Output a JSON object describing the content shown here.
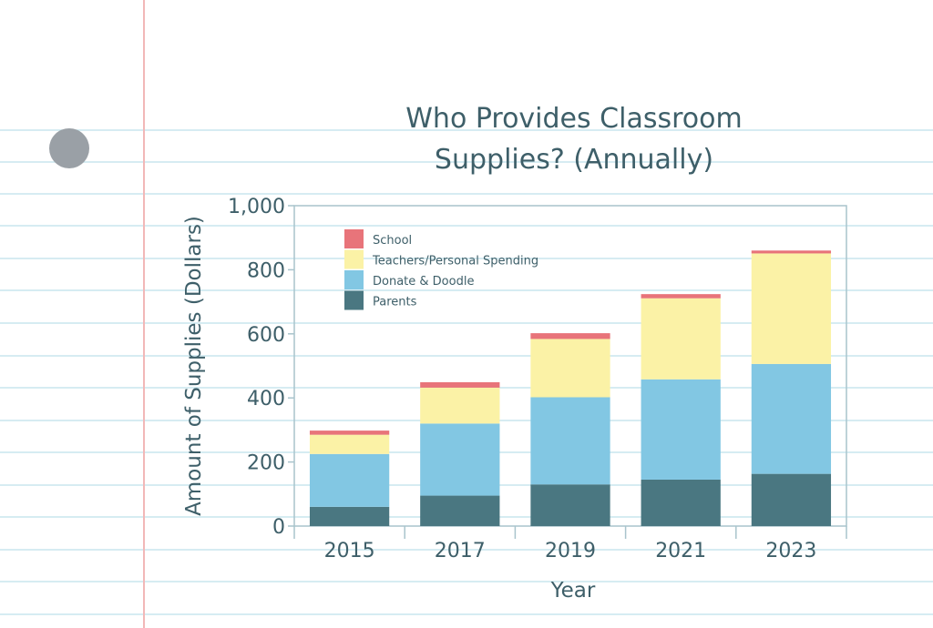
{
  "colors": {
    "school": "#e8747a",
    "teachers": "#fbf2a6",
    "donate": "#82c7e3",
    "parents": "#4a7781",
    "text": "#3e5f69",
    "axis": "#a9c4cc",
    "paper_line": "#c8e6ee",
    "margin_line": "#f2b8b8",
    "hole": "#9aa0a6"
  },
  "chart_data": {
    "type": "bar",
    "stacked": true,
    "title_lines": [
      "Who Provides Classroom",
      "Supplies? (Annually)"
    ],
    "xlabel": "Year",
    "ylabel": "Amount of Supplies (Dollars)",
    "categories": [
      "2015",
      "2017",
      "2019",
      "2021",
      "2023"
    ],
    "ylim": [
      0,
      1000
    ],
    "yticks": [
      {
        "value": 0,
        "label": "0"
      },
      {
        "value": 200,
        "label": "200"
      },
      {
        "value": 400,
        "label": "400"
      },
      {
        "value": 600,
        "label": "600"
      },
      {
        "value": 800,
        "label": "800"
      },
      {
        "value": 1000,
        "label": "1,000"
      }
    ],
    "grid": false,
    "legend_position": "top-left",
    "series": [
      {
        "key": "parents",
        "name": "Parents",
        "values": [
          60,
          95,
          130,
          145,
          163
        ]
      },
      {
        "key": "donate",
        "name": "Donate & Doodle",
        "values": [
          165,
          225,
          272,
          313,
          343
        ]
      },
      {
        "key": "teachers",
        "name": "Teachers/Personal Spending",
        "values": [
          60,
          112,
          182,
          253,
          345
        ]
      },
      {
        "key": "school",
        "name": "School",
        "values": [
          13,
          17,
          18,
          13,
          9
        ]
      }
    ],
    "legend_order": [
      "school",
      "teachers",
      "donate",
      "parents"
    ]
  }
}
